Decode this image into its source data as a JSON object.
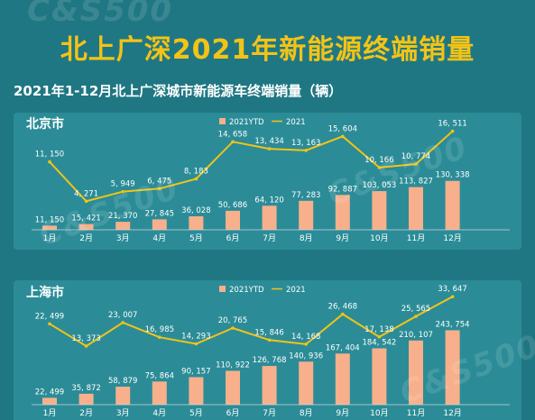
{
  "title": "北上广深2021年新能源终端销量",
  "subtitle": "2021年1-12月北上广深城市新能源车终端销量（辆）",
  "colors": {
    "bar": "#f7b08b",
    "line": "#f3c317",
    "title": "#f3c317",
    "background": "#1f7783"
  },
  "watermark": "乘世汽车 C&S500",
  "chart_data": [
    {
      "type": "bar",
      "city": "北京市",
      "categories": [
        "1月",
        "2月",
        "3月",
        "4月",
        "5月",
        "6月",
        "7月",
        "8月",
        "9月",
        "10月",
        "11月",
        "12月"
      ],
      "series": [
        {
          "name": "2021YTD",
          "type": "bar",
          "values": [
            11150,
            15421,
            21370,
            27845,
            36028,
            50686,
            64120,
            77283,
            92887,
            103053,
            113827,
            130338
          ],
          "labels": [
            "11, 150",
            "15, 421",
            "21, 370",
            "27, 845",
            "36, 028",
            "50, 686",
            "64, 120",
            "77, 283",
            "92, 887",
            "103, 053",
            "113, 827",
            "130, 338"
          ]
        },
        {
          "name": "2021",
          "type": "line",
          "values": [
            11150,
            4271,
            5949,
            6475,
            8183,
            14658,
            13434,
            13163,
            15604,
            10166,
            10774,
            16511
          ],
          "labels": [
            "11, 150",
            "4, 271",
            "5, 949",
            "6, 475",
            "8, 183",
            "14, 658",
            "13, 434",
            "13, 163",
            "15, 604",
            "10, 166",
            "10, 774",
            "16, 511"
          ]
        }
      ],
      "legend_position": "top"
    },
    {
      "type": "bar",
      "city": "上海市",
      "categories": [
        "1月",
        "2月",
        "3月",
        "4月",
        "5月",
        "6月",
        "7月",
        "8月",
        "9月",
        "10月",
        "11月",
        "12月"
      ],
      "series": [
        {
          "name": "2021YTD",
          "type": "bar",
          "values": [
            22499,
            35872,
            58879,
            75864,
            90157,
            110922,
            126768,
            140936,
            167404,
            184542,
            210107,
            243754
          ],
          "labels": [
            "22, 499",
            "35, 872",
            "58, 879",
            "75, 864",
            "90, 157",
            "110, 922",
            "126, 768",
            "140, 936",
            "167, 404",
            "184, 542",
            "210, 107",
            "243, 754"
          ]
        },
        {
          "name": "2021",
          "type": "line",
          "values": [
            22499,
            13373,
            23007,
            16985,
            14293,
            20765,
            15846,
            14168,
            26468,
            17138,
            25565,
            33647
          ],
          "labels": [
            "22, 499",
            "13, 373",
            "23, 007",
            "16, 985",
            "14, 293",
            "20, 765",
            "15, 846",
            "14, 168",
            "26, 468",
            "17, 138",
            "25, 565",
            "33, 647"
          ]
        }
      ],
      "legend_position": "top"
    }
  ]
}
